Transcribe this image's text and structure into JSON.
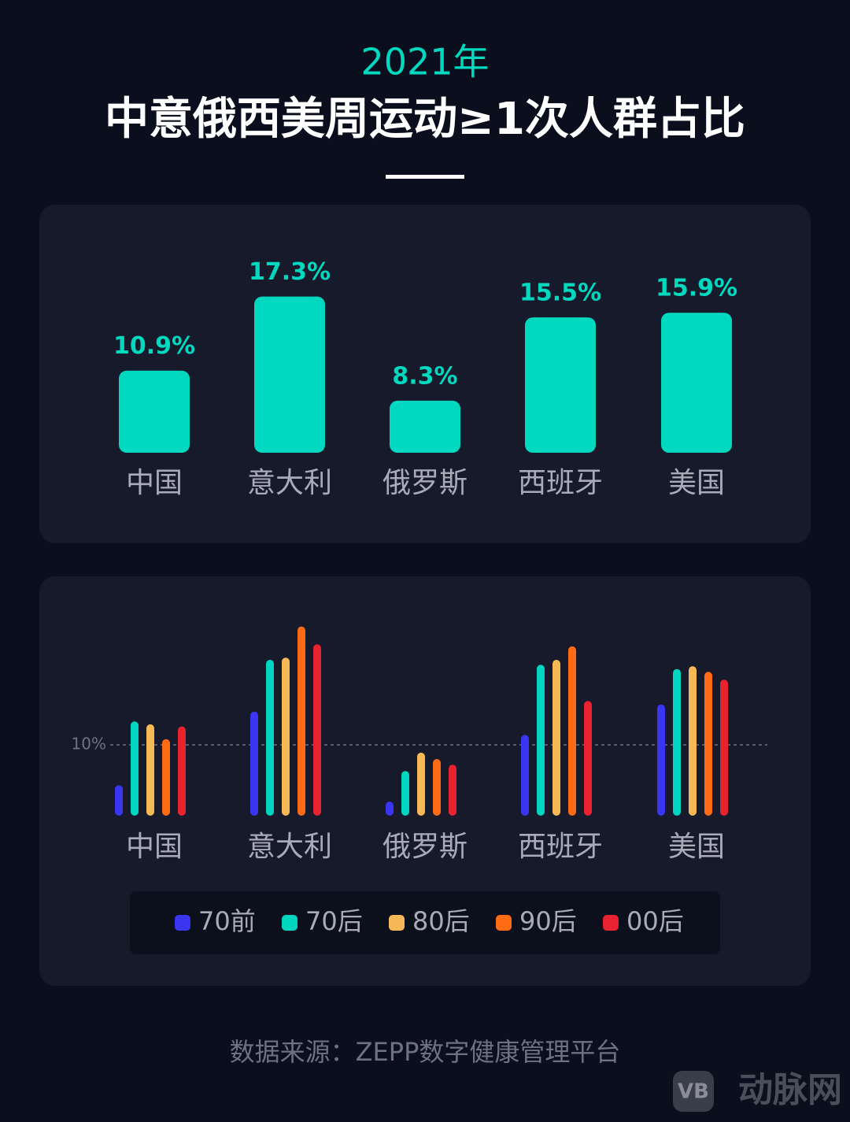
{
  "chart_data": [
    {
      "type": "bar",
      "subtitle": "2021年",
      "title": "中意俄西美周运动≥1次人群占比",
      "categories": [
        "中国",
        "意大利",
        "俄罗斯",
        "西班牙",
        "美国"
      ],
      "values": [
        10.9,
        17.3,
        8.3,
        15.5,
        15.9
      ],
      "value_labels": [
        "10.9%",
        "17.3%",
        "8.3%",
        "15.5%",
        "15.9%"
      ],
      "color": "#00d9c0",
      "ylim": [
        3.8,
        20
      ]
    },
    {
      "type": "bar",
      "categories": [
        "中国",
        "意大利",
        "俄罗斯",
        "西班牙",
        "美国"
      ],
      "series": [
        {
          "name": "70前",
          "color": "#3a35f0",
          "values": [
            4.3,
            14.7,
            2.0,
            11.4,
            15.7
          ]
        },
        {
          "name": "70后",
          "color": "#00d5bf",
          "values": [
            13.3,
            22.0,
            6.3,
            21.3,
            20.7
          ]
        },
        {
          "name": "80后",
          "color": "#f7b955",
          "values": [
            12.9,
            22.3,
            8.9,
            22.0,
            21.1
          ]
        },
        {
          "name": "90后",
          "color": "#ff6a14",
          "values": [
            10.8,
            26.7,
            8.0,
            23.9,
            20.3
          ]
        },
        {
          "name": "00后",
          "color": "#e8222e",
          "values": [
            12.6,
            24.2,
            7.2,
            16.2,
            19.2
          ]
        }
      ],
      "ylim": [
        0,
        28
      ],
      "yticks": [
        {
          "value": 10,
          "label": "10%"
        }
      ],
      "grid": true,
      "legend": "bottom"
    }
  ],
  "footer": {
    "source": "数据来源：ZEPP数字健康管理平台",
    "watermark": "动脉网"
  }
}
